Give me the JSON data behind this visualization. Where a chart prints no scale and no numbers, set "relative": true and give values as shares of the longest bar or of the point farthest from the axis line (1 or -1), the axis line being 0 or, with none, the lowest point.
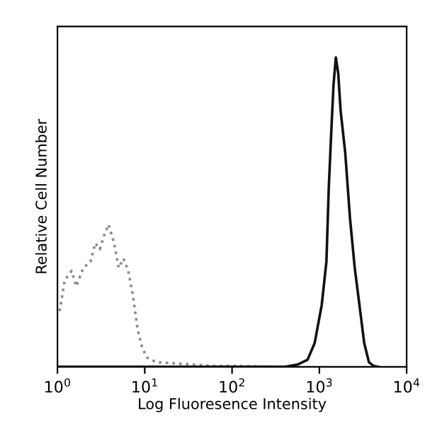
{
  "chart_data": {
    "type": "line",
    "relative": true,
    "xlabel": "Log Fluoresence Intensity",
    "ylabel": "Relative Cell Number",
    "log": "x",
    "xlim": [
      1,
      10000
    ],
    "xticks": [
      {
        "value": 1,
        "label": "10$^{0}$"
      },
      {
        "value": 10,
        "label": "10$^{1}$"
      },
      {
        "value": 100,
        "label": "10$^{2}$"
      },
      {
        "value": 1000,
        "label": "10$^{3}$"
      },
      {
        "value": 10000,
        "label": "10$^{4}$"
      }
    ],
    "tick_labels": "x",
    "grid": false,
    "series": [
      {
        "color": "#8a8a8a",
        "line_style": "dotted",
        "x": [
          1.06,
          1.21,
          1.45,
          1.64,
          1.98,
          2.39,
          2.71,
          3.06,
          3.47,
          3.84,
          4.45,
          5.04,
          5.71,
          6.47,
          7.32,
          8.3,
          9.4,
          10.6,
          13.6,
          19.9,
          32.6,
          60.8,
          113,
          391
        ],
        "values": [
          0.18,
          0.28,
          0.31,
          0.26,
          0.32,
          0.34,
          0.4,
          0.38,
          0.43,
          0.46,
          0.4,
          0.32,
          0.35,
          0.31,
          0.23,
          0.12,
          0.06,
          0.03,
          0.015,
          0.012,
          0.008,
          0.003,
          0.003,
          0
        ]
      },
      {
        "color": "#111111",
        "line_style": "solid",
        "x": [
          1,
          100,
          393,
          571,
          733,
          884,
          1065,
          1205,
          1283,
          1365,
          1452,
          1545,
          1644,
          1750,
          1982,
          2245,
          2543,
          2879,
          3265,
          3698,
          4188,
          4742
        ],
        "values": [
          0,
          0,
          0,
          0.008,
          0.023,
          0.077,
          0.2,
          0.34,
          0.58,
          0.75,
          0.91,
          1.0,
          0.95,
          0.83,
          0.69,
          0.48,
          0.32,
          0.2,
          0.077,
          0.015,
          0.003,
          0
        ]
      }
    ]
  }
}
